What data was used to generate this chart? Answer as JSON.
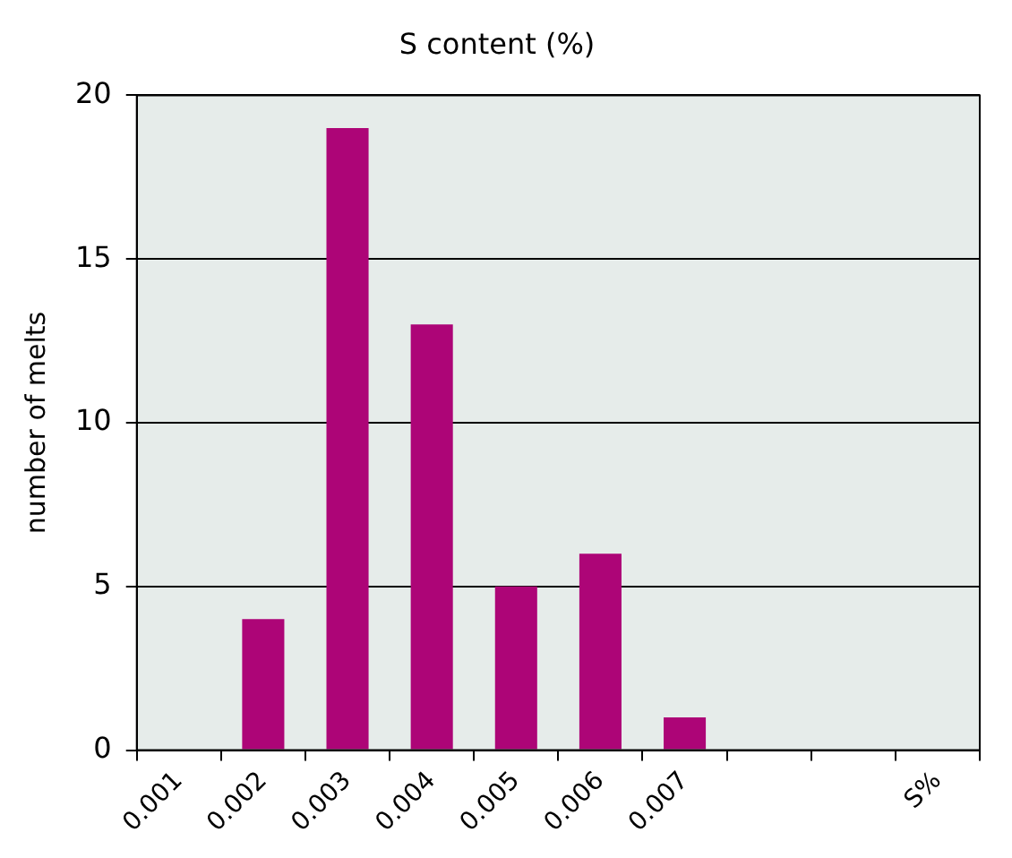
{
  "chart_data": {
    "type": "bar",
    "title": "S content (%)",
    "ylabel": "number of melts",
    "categories": [
      "0.001",
      "0.002",
      "0.003",
      "0.004",
      "0.005",
      "0.006",
      "0.007",
      null,
      null,
      "S%"
    ],
    "values": [
      0,
      4,
      19,
      13,
      5,
      6,
      1,
      null,
      null,
      null
    ],
    "color": "#ad0577",
    "ylim": [
      0,
      20
    ],
    "yticks": [
      0,
      5,
      10,
      15,
      20
    ],
    "grid": "y",
    "legend": false
  }
}
